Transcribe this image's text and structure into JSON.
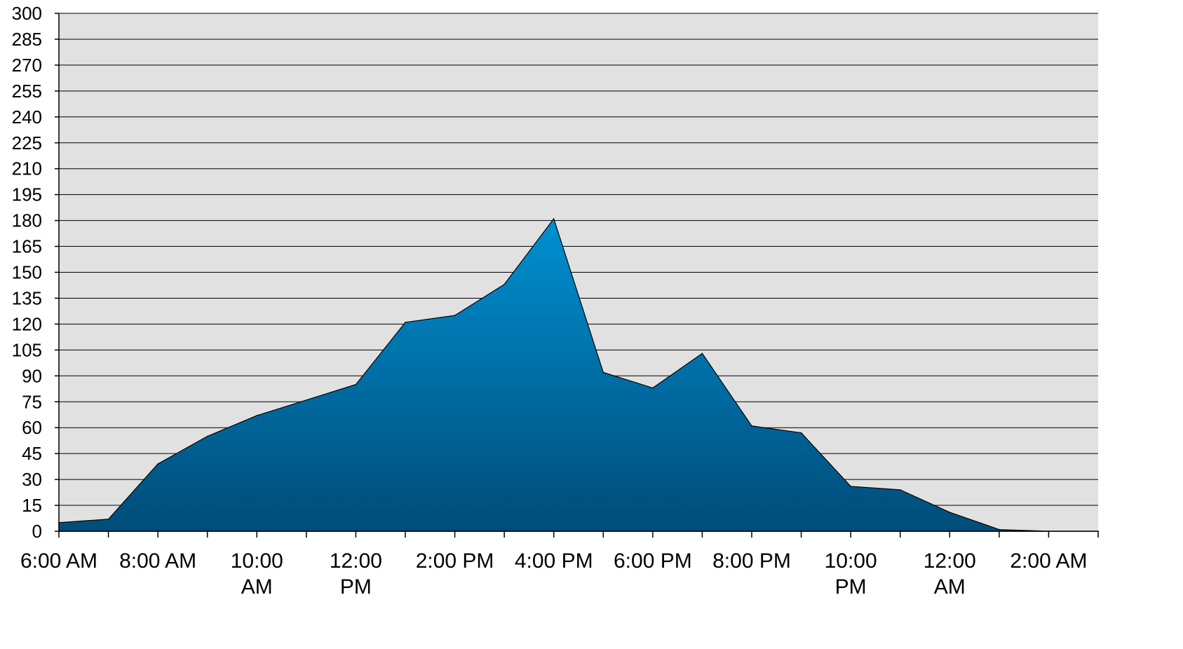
{
  "colors": {
    "plot_background": "#e1e1e1",
    "area_top": "#0090d2",
    "area_bottom": "#004c78",
    "outline": "#000000"
  },
  "chart_data": {
    "type": "area",
    "x": [
      "6:00 AM",
      "7:00 AM",
      "8:00 AM",
      "9:00 AM",
      "10:00 AM",
      "11:00 AM",
      "12:00 PM",
      "1:00 PM",
      "2:00 PM",
      "3:00 PM",
      "4:00 PM",
      "5:00 PM",
      "6:00 PM",
      "7:00 PM",
      "8:00 PM",
      "9:00 PM",
      "10:00 PM",
      "11:00 PM",
      "12:00 AM",
      "1:00 AM",
      "2:00 AM",
      "3:00 AM"
    ],
    "series": [
      {
        "values": [
          5,
          7,
          39,
          55,
          67,
          76,
          85,
          121,
          125,
          143,
          181,
          92,
          83,
          103,
          61,
          57,
          26,
          24,
          11,
          1,
          0,
          0
        ]
      }
    ],
    "tick_labels": [
      {
        "index": 0,
        "lines": [
          "6:00 AM"
        ]
      },
      {
        "index": 2,
        "lines": [
          "8:00 AM"
        ]
      },
      {
        "index": 4,
        "lines": [
          "10:00",
          "AM"
        ]
      },
      {
        "index": 6,
        "lines": [
          "12:00",
          "PM"
        ]
      },
      {
        "index": 8,
        "lines": [
          "2:00 PM"
        ]
      },
      {
        "index": 10,
        "lines": [
          "4:00 PM"
        ]
      },
      {
        "index": 12,
        "lines": [
          "6:00 PM"
        ]
      },
      {
        "index": 14,
        "lines": [
          "8:00 PM"
        ]
      },
      {
        "index": 16,
        "lines": [
          "10:00",
          "PM"
        ]
      },
      {
        "index": 18,
        "lines": [
          "12:00",
          "AM"
        ]
      },
      {
        "index": 20,
        "lines": [
          "2:00 AM"
        ]
      }
    ],
    "ylim": [
      0,
      300
    ],
    "ytick_step": 15,
    "grid": true,
    "legend": "none",
    "title": "",
    "xlabel": "",
    "ylabel": ""
  }
}
